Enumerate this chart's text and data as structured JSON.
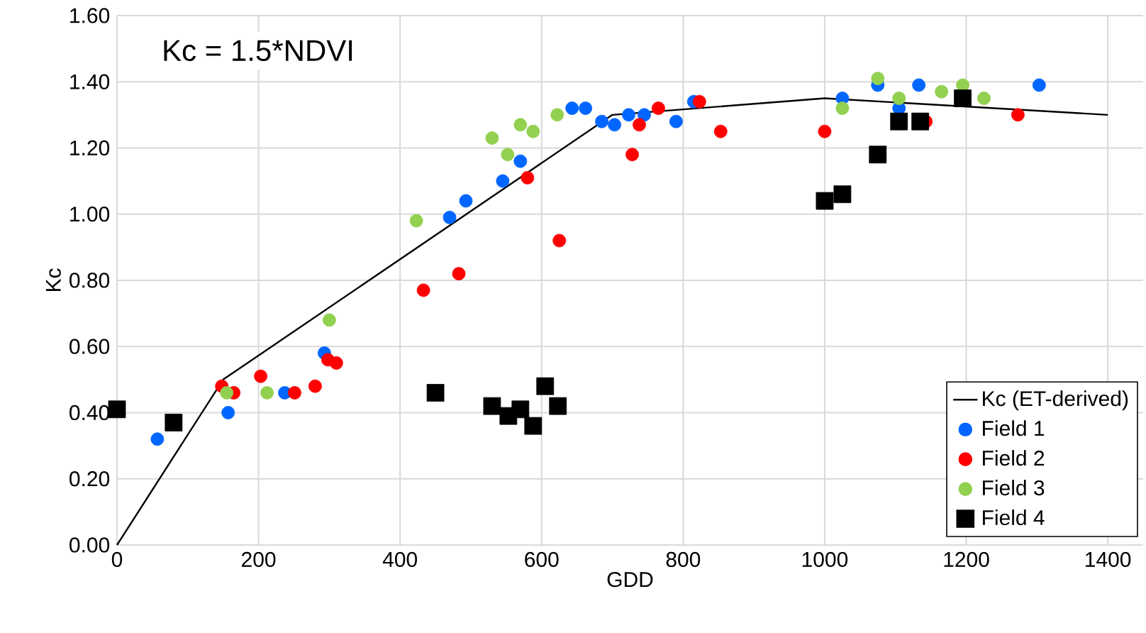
{
  "chart_data": {
    "type": "scatter",
    "xlabel": "GDD",
    "ylabel": "Kc",
    "annotations": [
      "Kc = 1.5*NDVI"
    ],
    "xlim": [
      0,
      1450
    ],
    "xticks": [
      0,
      200,
      400,
      600,
      800,
      1000,
      1200,
      1400
    ],
    "ylim": [
      0,
      1.6
    ],
    "yticks": [
      {
        "value": 0,
        "label": "0.00"
      },
      {
        "value": 0.2,
        "label": "0.20"
      },
      {
        "value": 0.4,
        "label": "0.40"
      },
      {
        "value": 0.6,
        "label": "0.60"
      },
      {
        "value": 0.8,
        "label": "0.80"
      },
      {
        "value": 1.0,
        "label": "1.00"
      },
      {
        "value": 1.2,
        "label": "1.20"
      },
      {
        "value": 1.4,
        "label": "1.40"
      },
      {
        "value": 1.6,
        "label": "1.60"
      }
    ],
    "grid": true,
    "legend": "bottom right",
    "series": [
      {
        "name": "Kc (ET-derived)",
        "type": "line",
        "marker": "none",
        "line_style": "solid",
        "color": "#000000",
        "x": [
          0,
          150,
          700,
          1000,
          1400
        ],
        "values": [
          0,
          0.5,
          1.3,
          1.35,
          1.3
        ]
      },
      {
        "name": "Field 1",
        "marker": "circle",
        "color": "#0066ff",
        "x": [
          57,
          157,
          237,
          293,
          470,
          493,
          545,
          570,
          643,
          662,
          685,
          703,
          723,
          745,
          790,
          815,
          1025,
          1075,
          1105,
          1133,
          1303
        ],
        "values": [
          0.32,
          0.4,
          0.46,
          0.58,
          0.99,
          1.04,
          1.1,
          1.16,
          1.32,
          1.32,
          1.28,
          1.27,
          1.3,
          1.3,
          1.28,
          1.34,
          1.35,
          1.39,
          1.32,
          1.39,
          1.39
        ]
      },
      {
        "name": "Field 2",
        "marker": "circle",
        "color": "#ff0000",
        "x": [
          148,
          165,
          203,
          251,
          280,
          298,
          310,
          433,
          483,
          580,
          625,
          728,
          738,
          765,
          823,
          853,
          1000,
          1143,
          1273
        ],
        "values": [
          0.48,
          0.46,
          0.51,
          0.46,
          0.48,
          0.56,
          0.55,
          0.77,
          0.82,
          1.11,
          0.92,
          1.18,
          1.27,
          1.32,
          1.34,
          1.25,
          1.25,
          1.28,
          1.3
        ]
      },
      {
        "name": "Field 3",
        "marker": "circle",
        "color": "#92d050",
        "x": [
          155,
          212,
          300,
          423,
          530,
          552,
          570,
          588,
          622,
          1025,
          1075,
          1105,
          1165,
          1195,
          1225
        ],
        "values": [
          0.46,
          0.46,
          0.68,
          0.98,
          1.23,
          1.18,
          1.27,
          1.25,
          1.3,
          1.32,
          1.41,
          1.35,
          1.37,
          1.39,
          1.35
        ]
      },
      {
        "name": "Field 4",
        "marker": "square",
        "color": "#000000",
        "x": [
          0,
          80,
          450,
          530,
          553,
          570,
          588,
          605,
          623,
          1000,
          1025,
          1075,
          1105,
          1135,
          1195
        ],
        "values": [
          0.41,
          0.37,
          0.46,
          0.42,
          0.39,
          0.41,
          0.36,
          0.48,
          0.42,
          1.04,
          1.06,
          1.18,
          1.28,
          1.28,
          1.35
        ]
      }
    ]
  }
}
